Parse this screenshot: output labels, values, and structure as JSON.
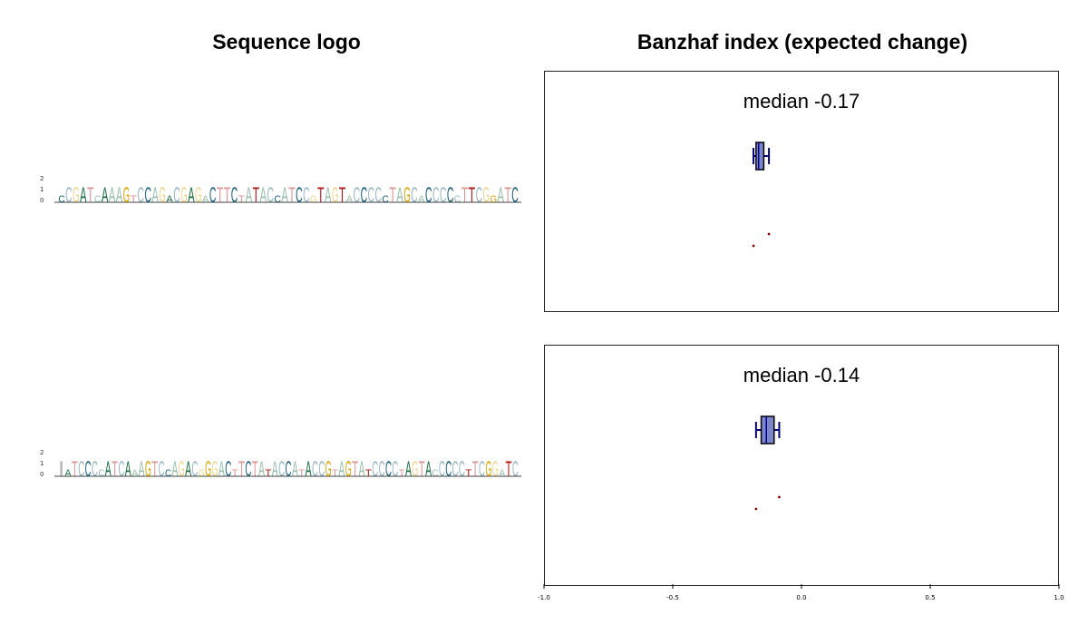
{
  "titles": {
    "left": "Sequence logo",
    "right": "Banzhaf index (expected change)"
  },
  "logo_axis": {
    "ticks": [
      "2",
      "1",
      "0"
    ]
  },
  "colors": {
    "A": "#1a6e40",
    "C": "#1a5f7a",
    "G": "#d9a400",
    "T": "#b01818",
    "box_fill": "#7b86cc",
    "box_stroke": "#000080",
    "outlier": "#8b0000"
  },
  "chart_data": {
    "type": "box",
    "xlim": [
      -1.0,
      1.0
    ],
    "xticks": [
      "-1.0",
      "-0.5",
      "0.0",
      "0.5",
      "1.0"
    ],
    "xtick_values": [
      -1.0,
      -0.5,
      0.0,
      0.5,
      1.0
    ],
    "panels": [
      {
        "median_label": "median -0.17",
        "median": -0.17,
        "q1": -0.18,
        "q3": -0.15,
        "whisker_low": -0.19,
        "whisker_high": -0.13,
        "outliers": [
          -0.19,
          -0.13
        ]
      },
      {
        "median_label": "median -0.14",
        "median": -0.14,
        "q1": -0.16,
        "q3": -0.11,
        "whisker_low": -0.18,
        "whisker_high": -0.09,
        "outliers": [
          -0.18,
          -0.09
        ]
      }
    ]
  },
  "logos": [
    {
      "sequence": "CCGATCAAAGTCCAGACGAGACTTCTATACCATCCGTAGTACCCCCTAGCACCCCCTTCGGATC"
    },
    {
      "sequence": "IATCCCCATCAAAGTCCAGACGGGACTTCTATACCATACCGTAGTATCCCCTAGTACCCCCTTCGGATC"
    }
  ]
}
